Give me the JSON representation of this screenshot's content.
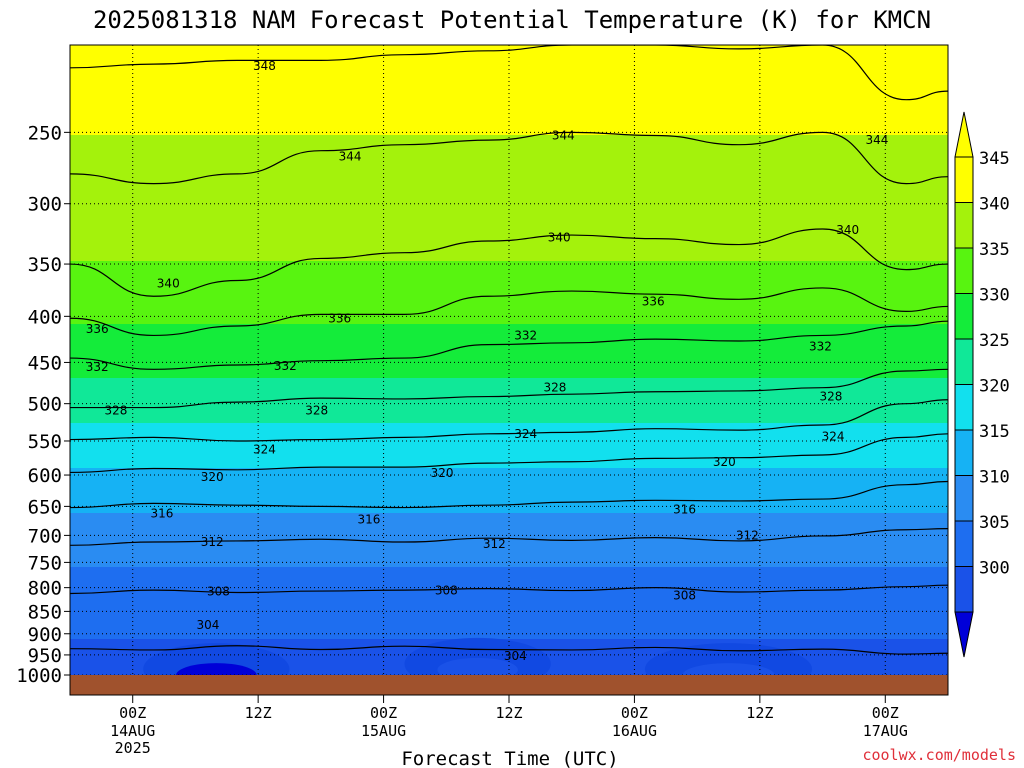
{
  "chart_data": {
    "type": "heatmap",
    "title": "2025081318 NAM Forecast Potential Temperature (K) for KMCN",
    "xlabel": "Forecast Time (UTC)",
    "ylabel": "",
    "credit": "coolwx.com/models",
    "x_ticks": [
      {
        "label": "00Z",
        "sub": [
          "14AUG",
          "2025"
        ],
        "t": 6
      },
      {
        "label": "12Z",
        "sub": [],
        "t": 18
      },
      {
        "label": "00Z",
        "sub": [
          "15AUG"
        ],
        "t": 30
      },
      {
        "label": "12Z",
        "sub": [],
        "t": 42
      },
      {
        "label": "00Z",
        "sub": [
          "16AUG"
        ],
        "t": 54
      },
      {
        "label": "12Z",
        "sub": [],
        "t": 66
      },
      {
        "label": "00Z",
        "sub": [
          "17AUG"
        ],
        "t": 78
      }
    ],
    "xlim": [
      0,
      84
    ],
    "y_ticks": [
      "250",
      "300",
      "350",
      "400",
      "450",
      "500",
      "550",
      "600",
      "650",
      "700",
      "750",
      "800",
      "850",
      "900",
      "950",
      "1000"
    ],
    "y_tick_values": [
      250,
      300,
      350,
      400,
      450,
      500,
      550,
      600,
      650,
      700,
      750,
      800,
      850,
      900,
      950,
      1000
    ],
    "ylim": [
      200,
      1000
    ],
    "y_scale": "log",
    "y_inverted": true,
    "colorbar": {
      "labels": [
        "300",
        "305",
        "310",
        "315",
        "320",
        "325",
        "330",
        "335",
        "340",
        "345"
      ],
      "values": [
        300,
        305,
        310,
        315,
        320,
        325,
        330,
        335,
        340,
        345
      ],
      "colors": [
        "#1a52e8",
        "#1e6ef0",
        "#2a8cf2",
        "#16b2f4",
        "#12e0ee",
        "#10e898",
        "#14ec3a",
        "#58f410",
        "#a4f20c",
        "#ffff00"
      ],
      "under_color": "#0000d8",
      "over_color": "#ffff00"
    },
    "series": [
      {
        "value": 304,
        "points": [
          [
            0,
            935
          ],
          [
            8,
            938
          ],
          [
            16,
            928
          ],
          [
            24,
            937
          ],
          [
            32,
            929
          ],
          [
            40,
            937
          ],
          [
            48,
            938
          ],
          [
            56,
            932
          ],
          [
            64,
            940
          ],
          [
            72,
            936
          ],
          [
            80,
            948
          ],
          [
            84,
            946
          ]
        ]
      },
      {
        "value": 308,
        "points": [
          [
            0,
            812
          ],
          [
            8,
            805
          ],
          [
            16,
            810
          ],
          [
            24,
            807
          ],
          [
            32,
            805
          ],
          [
            40,
            802
          ],
          [
            48,
            806
          ],
          [
            56,
            800
          ],
          [
            64,
            809
          ],
          [
            72,
            805
          ],
          [
            80,
            798
          ],
          [
            84,
            795
          ]
        ]
      },
      {
        "value": 312,
        "points": [
          [
            0,
            718
          ],
          [
            8,
            712
          ],
          [
            16,
            710
          ],
          [
            24,
            707
          ],
          [
            32,
            712
          ],
          [
            40,
            705
          ],
          [
            48,
            709
          ],
          [
            56,
            704
          ],
          [
            64,
            710
          ],
          [
            72,
            701
          ],
          [
            80,
            690
          ],
          [
            84,
            688
          ]
        ]
      },
      {
        "value": 316,
        "points": [
          [
            0,
            652
          ],
          [
            8,
            645
          ],
          [
            16,
            648
          ],
          [
            24,
            650
          ],
          [
            32,
            652
          ],
          [
            40,
            648
          ],
          [
            48,
            643
          ],
          [
            56,
            640
          ],
          [
            64,
            641
          ],
          [
            72,
            638
          ],
          [
            80,
            615
          ],
          [
            84,
            610
          ]
        ]
      },
      {
        "value": 320,
        "points": [
          [
            0,
            596
          ],
          [
            8,
            590
          ],
          [
            16,
            592
          ],
          [
            24,
            588
          ],
          [
            32,
            588
          ],
          [
            40,
            582
          ],
          [
            48,
            580
          ],
          [
            56,
            575
          ],
          [
            64,
            574
          ],
          [
            72,
            570
          ],
          [
            80,
            545
          ],
          [
            84,
            540
          ]
        ]
      },
      {
        "value": 324,
        "points": [
          [
            0,
            548
          ],
          [
            8,
            545
          ],
          [
            16,
            550
          ],
          [
            24,
            548
          ],
          [
            32,
            545
          ],
          [
            40,
            540
          ],
          [
            48,
            538
          ],
          [
            56,
            533
          ],
          [
            64,
            535
          ],
          [
            72,
            528
          ],
          [
            80,
            500
          ],
          [
            84,
            495
          ]
        ]
      },
      {
        "value": 328,
        "points": [
          [
            0,
            505
          ],
          [
            8,
            505
          ],
          [
            16,
            498
          ],
          [
            24,
            493
          ],
          [
            32,
            494
          ],
          [
            40,
            491
          ],
          [
            48,
            488
          ],
          [
            56,
            485
          ],
          [
            64,
            484
          ],
          [
            72,
            480
          ],
          [
            80,
            460
          ],
          [
            84,
            458
          ]
        ]
      },
      {
        "value": 332,
        "points": [
          [
            0,
            445
          ],
          [
            8,
            458
          ],
          [
            16,
            453
          ],
          [
            24,
            448
          ],
          [
            32,
            445
          ],
          [
            40,
            430
          ],
          [
            48,
            428
          ],
          [
            56,
            424
          ],
          [
            64,
            426
          ],
          [
            72,
            420
          ],
          [
            80,
            410
          ],
          [
            84,
            405
          ]
        ]
      },
      {
        "value": 336,
        "points": [
          [
            0,
            402
          ],
          [
            8,
            420
          ],
          [
            16,
            410
          ],
          [
            24,
            398
          ],
          [
            32,
            398
          ],
          [
            40,
            380
          ],
          [
            48,
            375
          ],
          [
            56,
            378
          ],
          [
            64,
            383
          ],
          [
            72,
            372
          ],
          [
            80,
            395
          ],
          [
            84,
            390
          ]
        ]
      },
      {
        "value": 340,
        "points": [
          [
            0,
            350
          ],
          [
            8,
            380
          ],
          [
            16,
            365
          ],
          [
            24,
            345
          ],
          [
            32,
            340
          ],
          [
            40,
            330
          ],
          [
            48,
            325
          ],
          [
            56,
            328
          ],
          [
            64,
            333
          ],
          [
            72,
            320
          ],
          [
            80,
            355
          ],
          [
            84,
            350
          ]
        ]
      },
      {
        "value": 344,
        "points": [
          [
            0,
            278
          ],
          [
            8,
            285
          ],
          [
            16,
            278
          ],
          [
            24,
            262
          ],
          [
            32,
            258
          ],
          [
            40,
            255
          ],
          [
            48,
            250
          ],
          [
            56,
            252
          ],
          [
            64,
            258
          ],
          [
            72,
            250
          ],
          [
            80,
            285
          ],
          [
            84,
            280
          ]
        ]
      },
      {
        "value": 348,
        "points": [
          [
            0,
            212
          ],
          [
            8,
            210
          ],
          [
            16,
            208
          ],
          [
            24,
            208
          ],
          [
            32,
            205
          ],
          [
            40,
            203
          ],
          [
            48,
            200
          ],
          [
            56,
            200
          ],
          [
            64,
            202
          ],
          [
            72,
            200
          ],
          [
            80,
            230
          ],
          [
            84,
            225
          ]
        ]
      }
    ],
    "contour_labels": [
      {
        "text": "348",
        "t": 18.6,
        "p": 211
      },
      {
        "text": "344",
        "t": 26.8,
        "p": 266
      },
      {
        "text": "344",
        "t": 47.2,
        "p": 252
      },
      {
        "text": "344",
        "t": 77.2,
        "p": 255
      },
      {
        "text": "340",
        "t": 9.4,
        "p": 368
      },
      {
        "text": "340",
        "t": 46.8,
        "p": 327
      },
      {
        "text": "340",
        "t": 74.4,
        "p": 321
      },
      {
        "text": "336",
        "t": 2.6,
        "p": 413
      },
      {
        "text": "336",
        "t": 25.8,
        "p": 402
      },
      {
        "text": "336",
        "t": 55.8,
        "p": 385
      },
      {
        "text": "332",
        "t": 2.6,
        "p": 455
      },
      {
        "text": "332",
        "t": 20.6,
        "p": 454
      },
      {
        "text": "332",
        "t": 43.6,
        "p": 420
      },
      {
        "text": "332",
        "t": 71.8,
        "p": 432
      },
      {
        "text": "328",
        "t": 4.4,
        "p": 509
      },
      {
        "text": "328",
        "t": 23.6,
        "p": 509
      },
      {
        "text": "328",
        "t": 46.4,
        "p": 480
      },
      {
        "text": "328",
        "t": 72.8,
        "p": 491
      },
      {
        "text": "324",
        "t": 18.6,
        "p": 562
      },
      {
        "text": "324",
        "t": 43.6,
        "p": 540
      },
      {
        "text": "324",
        "t": 73.0,
        "p": 544
      },
      {
        "text": "320",
        "t": 13.6,
        "p": 603
      },
      {
        "text": "320",
        "t": 35.6,
        "p": 597
      },
      {
        "text": "320",
        "t": 62.6,
        "p": 580
      },
      {
        "text": "316",
        "t": 8.8,
        "p": 662
      },
      {
        "text": "316",
        "t": 28.6,
        "p": 672
      },
      {
        "text": "316",
        "t": 58.8,
        "p": 655
      },
      {
        "text": "312",
        "t": 13.6,
        "p": 712
      },
      {
        "text": "312",
        "t": 40.6,
        "p": 716
      },
      {
        "text": "312",
        "t": 64.8,
        "p": 700
      },
      {
        "text": "308",
        "t": 14.2,
        "p": 808
      },
      {
        "text": "308",
        "t": 36.0,
        "p": 806
      },
      {
        "text": "308",
        "t": 58.8,
        "p": 816
      },
      {
        "text": "304",
        "t": 13.2,
        "p": 880
      },
      {
        "text": "304",
        "t": 42.6,
        "p": 953
      }
    ],
    "cold_cores": [
      {
        "t": 14,
        "p": 985,
        "dt": 7,
        "value": 300
      },
      {
        "t": 39,
        "p": 972,
        "dt": 7,
        "value": 302
      },
      {
        "t": 63,
        "p": 985,
        "dt": 8,
        "value": 301
      }
    ],
    "ground_color": "#a0522d",
    "grid": true
  }
}
